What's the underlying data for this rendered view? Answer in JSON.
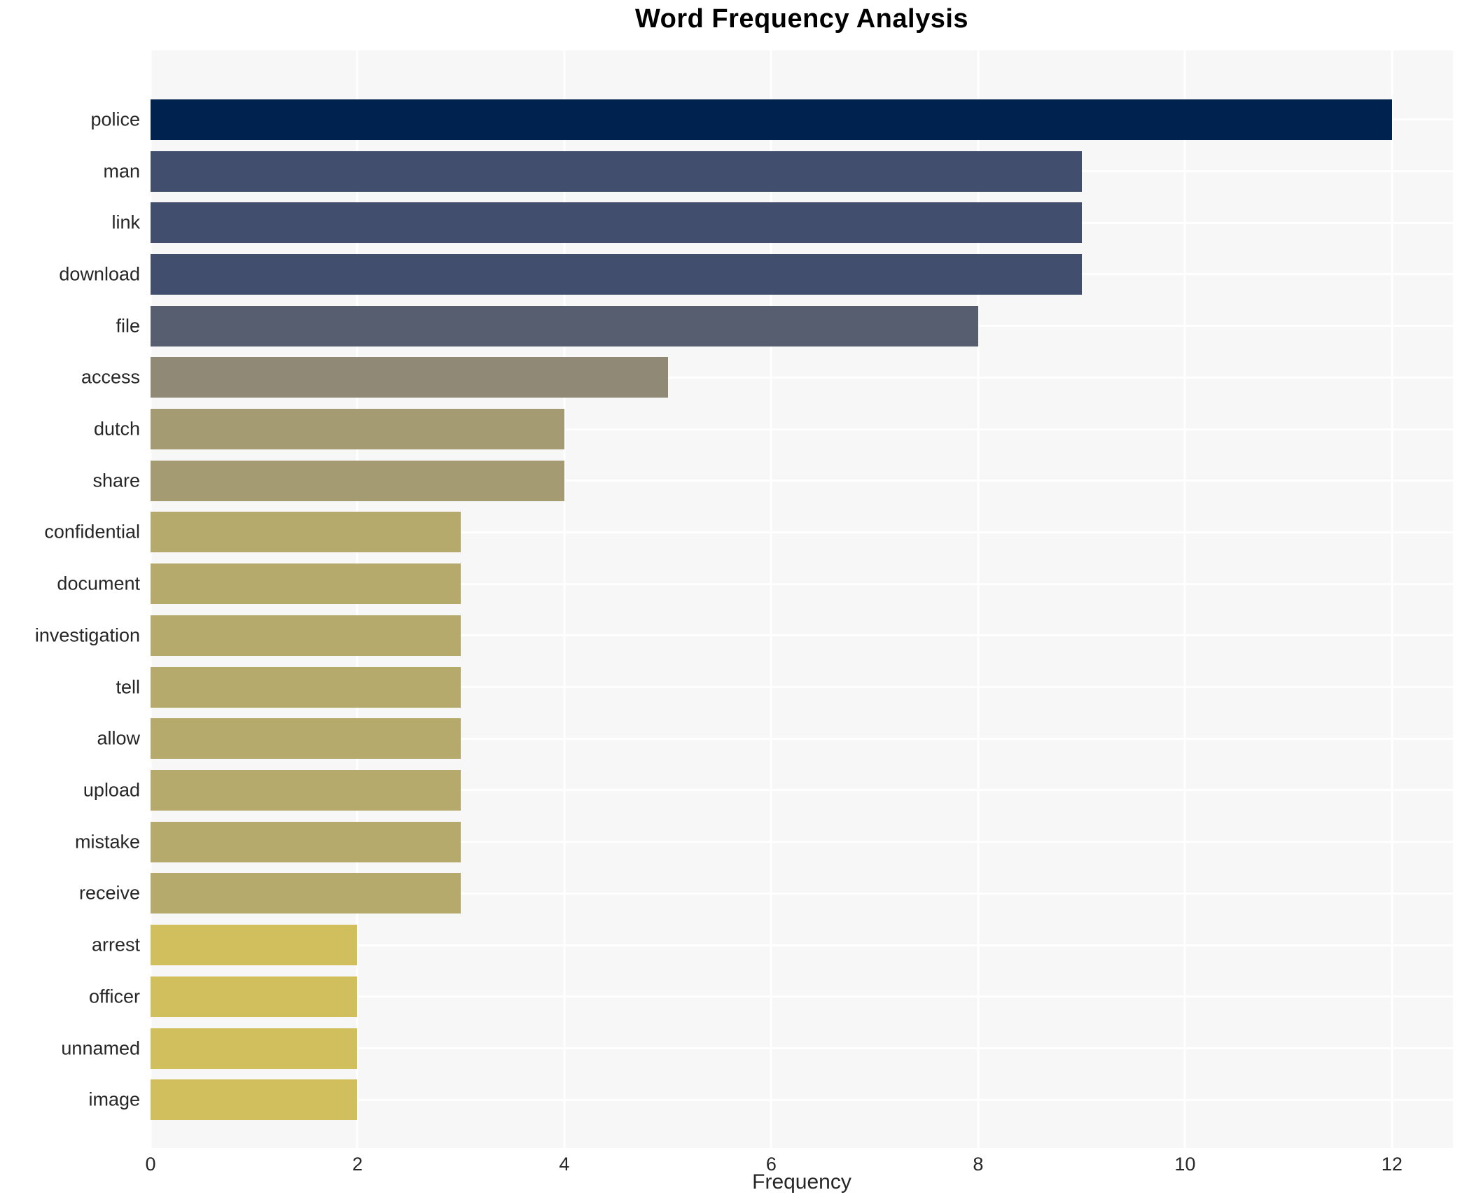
{
  "title": "Word Frequency Analysis",
  "axis": {
    "xlabel": "Frequency"
  },
  "chart_data": {
    "type": "bar",
    "orientation": "horizontal",
    "title": "Word Frequency Analysis",
    "xlabel": "Frequency",
    "ylabel": "",
    "categories": [
      "police",
      "man",
      "link",
      "download",
      "file",
      "access",
      "dutch",
      "share",
      "confidential",
      "document",
      "investigation",
      "tell",
      "allow",
      "upload",
      "mistake",
      "receive",
      "arrest",
      "officer",
      "unnamed",
      "image"
    ],
    "values": [
      12,
      9,
      9,
      9,
      8,
      5,
      4,
      4,
      3,
      3,
      3,
      3,
      3,
      3,
      3,
      3,
      2,
      2,
      2,
      2
    ],
    "bar_colors": [
      "#00224f",
      "#414e6d",
      "#414e6d",
      "#414e6d",
      "#575e6f",
      "#8f8976",
      "#a49b73",
      "#a49b73",
      "#b5a96c",
      "#b5a96c",
      "#b5a96c",
      "#b5a96c",
      "#b5a96c",
      "#b5a96c",
      "#b5a96c",
      "#b5a96c",
      "#d1bf5e",
      "#d1bf5e",
      "#d1bf5e",
      "#d1bf5e"
    ],
    "x_ticks": [
      0,
      2,
      4,
      6,
      8,
      10,
      12
    ],
    "xlim": [
      0,
      12.59
    ],
    "grid": true,
    "legend": "none",
    "plot_background": "#f7f7f7",
    "grid_color": "#ffffff",
    "figure_background": "#ffffff",
    "text_color": "#262626"
  }
}
